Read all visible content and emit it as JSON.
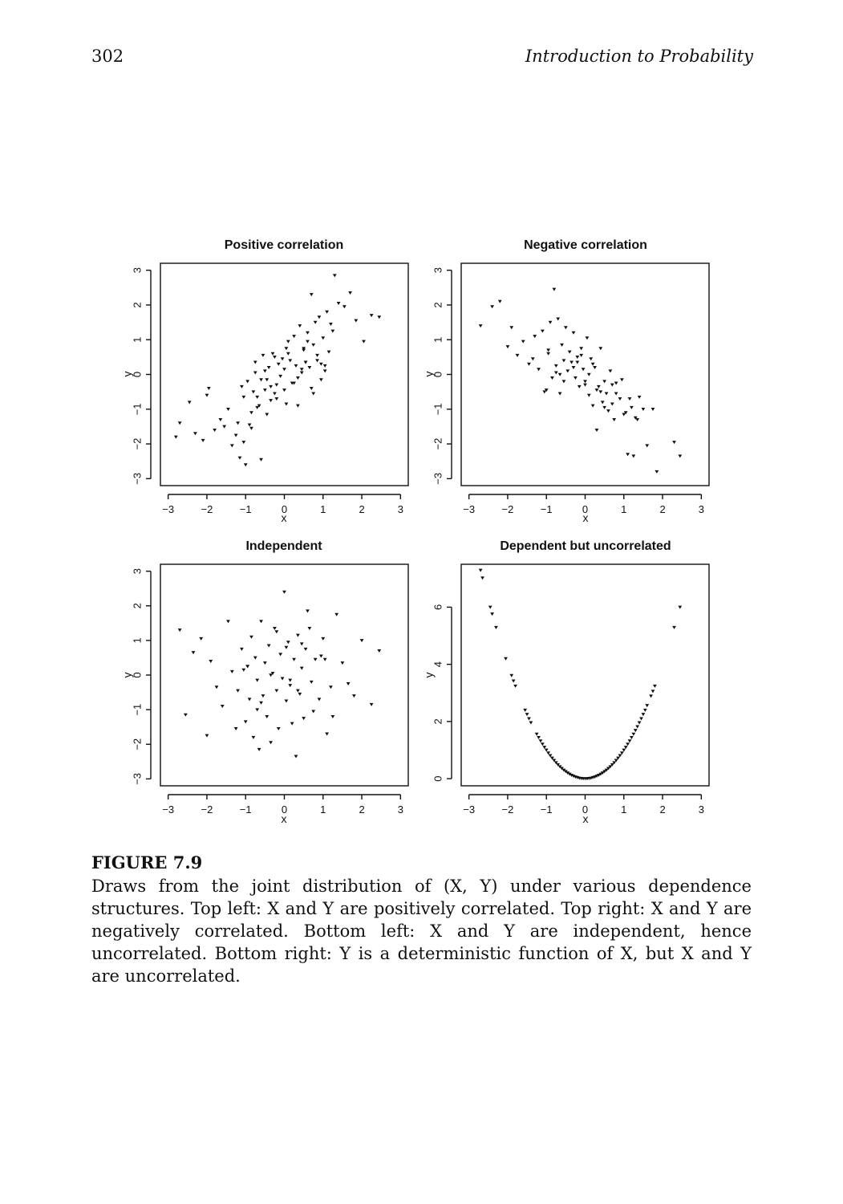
{
  "header": {
    "page_number": "302",
    "book_title": "Introduction to Probability"
  },
  "figure": {
    "label": "FIGURE 7.9",
    "caption": "Draws from the joint distribution of (X, Y) under various dependence structures. Top left: X and Y are positively correlated. Top right: X and Y are negatively correlated. Bottom left: X and Y are independent, hence uncorrelated. Bottom right: Y is a deterministic function of X, but X and Y are uncorrelated."
  },
  "chart_data": [
    {
      "type": "scatter",
      "title": "Positive correlation",
      "xlabel": "x",
      "ylabel": "y",
      "xlim": [
        -3.2,
        3.2
      ],
      "ylim": [
        -3.2,
        3.2
      ],
      "x_ticks": [
        -3,
        -2,
        -1,
        0,
        1,
        2,
        3
      ],
      "y_ticks": [
        -3,
        -2,
        -1,
        0,
        1,
        2,
        3
      ],
      "x_tick_labels": [
        "−3",
        "−2",
        "−1",
        "0",
        "1",
        "2",
        "3"
      ],
      "y_tick_labels": [
        "−3",
        "−2",
        "−1",
        "0",
        "1",
        "2",
        "3"
      ],
      "grid": false,
      "x": [
        -2.8,
        -2.7,
        -2.45,
        -2.3,
        -2.1,
        -2.0,
        -1.95,
        -1.8,
        -1.65,
        -1.55,
        -1.45,
        -1.35,
        -1.25,
        -1.2,
        -1.15,
        -1.1,
        -1.05,
        -1.0,
        -0.95,
        -0.9,
        -0.85,
        -0.8,
        -0.75,
        -0.7,
        -0.65,
        -0.6,
        -0.55,
        -0.5,
        -0.45,
        -0.4,
        -0.35,
        -0.3,
        -0.25,
        -0.2,
        -0.15,
        -0.1,
        -0.05,
        0.0,
        0.05,
        0.1,
        0.15,
        0.2,
        0.25,
        0.3,
        0.35,
        0.4,
        0.45,
        0.5,
        0.55,
        0.6,
        0.65,
        0.7,
        0.75,
        0.8,
        0.85,
        0.9,
        0.95,
        1.0,
        1.05,
        1.1,
        1.15,
        1.2,
        1.3,
        1.4,
        1.55,
        1.7,
        1.85,
        2.05,
        2.25,
        2.45,
        -1.05,
        -0.85,
        -0.7,
        -0.45,
        -0.2,
        0.0,
        0.1,
        0.25,
        0.45,
        0.55,
        0.6,
        0.75,
        0.85,
        1.05,
        -0.35,
        -0.6,
        -0.75,
        -0.5,
        -0.25,
        0.05,
        0.35,
        0.5,
        0.7,
        0.95,
        1.25
      ],
      "y": [
        -1.8,
        -1.4,
        -0.8,
        -1.7,
        -1.9,
        -0.6,
        -0.4,
        -1.6,
        -1.3,
        -1.5,
        -1.0,
        -2.05,
        -1.75,
        -1.4,
        -2.4,
        -0.35,
        -1.95,
        -2.6,
        -0.2,
        -1.45,
        -1.1,
        -0.5,
        0.05,
        -0.65,
        -0.9,
        -2.45,
        0.55,
        -0.45,
        -0.15,
        0.2,
        -0.75,
        0.6,
        -0.55,
        -0.3,
        0.3,
        -0.05,
        0.45,
        0.15,
        -0.85,
        0.95,
        0.4,
        -0.25,
        1.1,
        0.25,
        -0.1,
        1.4,
        0.05,
        0.75,
        0.35,
        1.2,
        0.2,
        2.3,
        0.85,
        1.5,
        0.4,
        1.65,
        -0.15,
        1.05,
        0.25,
        1.8,
        0.65,
        1.45,
        2.85,
        2.05,
        1.95,
        2.35,
        1.55,
        0.95,
        1.7,
        1.65,
        -0.65,
        -1.55,
        -0.95,
        -1.15,
        -0.7,
        -0.45,
        0.6,
        -0.25,
        0.15,
        0.35,
        0.95,
        -0.55,
        0.55,
        0.1,
        -0.35,
        -0.15,
        0.35,
        0.1,
        0.5,
        0.75,
        -0.9,
        0.7,
        -0.4,
        0.3,
        1.25
      ],
      "marker": "small filled triangle"
    },
    {
      "type": "scatter",
      "title": "Negative correlation",
      "xlabel": "x",
      "ylabel": "y",
      "xlim": [
        -3.2,
        3.2
      ],
      "ylim": [
        -3.2,
        3.2
      ],
      "x_ticks": [
        -3,
        -2,
        -1,
        0,
        1,
        2,
        3
      ],
      "y_ticks": [
        -3,
        -2,
        -1,
        0,
        1,
        2,
        3
      ],
      "x_tick_labels": [
        "−3",
        "−2",
        "−1",
        "0",
        "1",
        "2",
        "3"
      ],
      "y_tick_labels": [
        "−3",
        "−2",
        "−1",
        "0",
        "1",
        "2",
        "3"
      ],
      "grid": false,
      "x": [
        -2.7,
        -2.4,
        -2.2,
        -2.0,
        -1.9,
        -1.75,
        -1.6,
        -1.45,
        -1.3,
        -1.2,
        -1.1,
        -1.0,
        -0.95,
        -0.9,
        -0.85,
        -0.8,
        -0.75,
        -0.7,
        -0.65,
        -0.6,
        -0.55,
        -0.5,
        -0.45,
        -0.4,
        -0.35,
        -0.3,
        -0.25,
        -0.2,
        -0.15,
        -0.1,
        -0.05,
        0.0,
        0.05,
        0.1,
        0.15,
        0.2,
        0.25,
        0.3,
        0.35,
        0.4,
        0.45,
        0.5,
        0.55,
        0.6,
        0.65,
        0.7,
        0.75,
        0.8,
        0.9,
        1.0,
        1.1,
        1.2,
        1.3,
        1.4,
        1.5,
        1.6,
        1.75,
        1.85,
        2.3,
        2.45,
        -1.05,
        -0.75,
        -0.55,
        -0.3,
        -0.1,
        0.1,
        0.3,
        0.5,
        0.7,
        0.95,
        1.15,
        1.35,
        -1.35,
        -0.95,
        -0.65,
        -0.2,
        0.0,
        0.2,
        0.4,
        0.8,
        1.05,
        1.25
      ],
      "y": [
        1.4,
        1.95,
        2.1,
        0.8,
        1.35,
        0.55,
        0.95,
        0.3,
        1.1,
        0.15,
        1.25,
        -0.45,
        0.6,
        1.5,
        -0.1,
        2.45,
        0.25,
        1.6,
        -0.55,
        0.85,
        -0.2,
        1.35,
        0.1,
        0.65,
        0.35,
        1.2,
        -0.1,
        0.5,
        -0.35,
        0.75,
        0.15,
        -0.2,
        1.05,
        -0.6,
        0.45,
        -0.9,
        0.2,
        -1.6,
        -0.35,
        0.75,
        -0.8,
        -0.2,
        -0.55,
        -1.05,
        0.1,
        -0.85,
        -1.3,
        -0.55,
        -0.7,
        -1.15,
        -2.3,
        -0.95,
        -1.25,
        -0.65,
        -1.0,
        -2.05,
        -1.0,
        -2.8,
        -1.95,
        -2.35,
        -0.5,
        0.05,
        0.4,
        0.2,
        0.55,
        0.0,
        -0.45,
        -0.95,
        -0.3,
        -0.15,
        -0.7,
        -1.3,
        0.45,
        0.7,
        0.0,
        0.35,
        -0.3,
        0.3,
        -0.5,
        -0.25,
        -1.1,
        -2.35
      ],
      "marker": "small filled triangle"
    },
    {
      "type": "scatter",
      "title": "Independent",
      "xlabel": "x",
      "ylabel": "y",
      "xlim": [
        -3.2,
        3.2
      ],
      "ylim": [
        -3.2,
        3.2
      ],
      "x_ticks": [
        -3,
        -2,
        -1,
        0,
        1,
        2,
        3
      ],
      "y_ticks": [
        -3,
        -2,
        -1,
        0,
        1,
        2,
        3
      ],
      "x_tick_labels": [
        "−3",
        "−2",
        "−1",
        "0",
        "1",
        "2",
        "3"
      ],
      "y_tick_labels": [
        "−3",
        "−2",
        "−1",
        "0",
        "1",
        "2",
        "3"
      ],
      "grid": false,
      "x": [
        -2.7,
        -2.55,
        -2.35,
        -2.15,
        -2.0,
        -1.9,
        -1.75,
        -1.6,
        -1.45,
        -1.35,
        -1.2,
        -1.1,
        -1.0,
        -0.95,
        -0.9,
        -0.85,
        -0.8,
        -0.75,
        -0.7,
        -0.65,
        -0.6,
        -0.55,
        -0.5,
        -0.45,
        -0.4,
        -0.35,
        -0.3,
        -0.25,
        -0.2,
        -0.15,
        -0.1,
        -0.05,
        0.0,
        0.05,
        0.1,
        0.15,
        0.2,
        0.25,
        0.3,
        0.35,
        0.4,
        0.45,
        0.5,
        0.55,
        0.6,
        0.7,
        0.8,
        0.9,
        1.0,
        1.1,
        1.2,
        1.35,
        1.5,
        1.65,
        1.8,
        2.0,
        2.25,
        2.45,
        -1.25,
        -0.95,
        -0.6,
        -0.2,
        0.15,
        0.45,
        0.75,
        1.05,
        -1.05,
        -0.7,
        -0.35,
        0.05,
        0.35,
        0.65,
        0.95,
        1.25
      ],
      "y": [
        1.3,
        -1.15,
        0.65,
        1.05,
        -1.75,
        0.4,
        -0.35,
        -0.9,
        1.55,
        0.1,
        -0.45,
        0.75,
        -1.35,
        0.25,
        -0.7,
        1.1,
        -1.8,
        0.5,
        -0.15,
        -2.15,
        1.55,
        -0.6,
        0.35,
        -1.2,
        0.85,
        -1.95,
        0.05,
        1.35,
        -0.45,
        -1.55,
        0.6,
        -0.1,
        2.4,
        -0.75,
        0.95,
        -0.3,
        -1.4,
        0.45,
        -2.35,
        1.15,
        -0.55,
        0.2,
        -1.25,
        0.75,
        1.85,
        -0.2,
        0.45,
        -0.7,
        1.05,
        -1.7,
        -0.35,
        1.75,
        0.35,
        -0.25,
        -0.6,
        1.0,
        -0.85,
        0.7,
        -1.55,
        0.25,
        -0.8,
        1.25,
        -0.15,
        0.9,
        -1.05,
        0.45,
        0.15,
        -1.0,
        0.0,
        0.8,
        -0.45,
        1.35,
        0.55,
        -1.2
      ],
      "marker": "small filled triangle"
    },
    {
      "type": "scatter",
      "title": "Dependent but uncorrelated",
      "xlabel": "x",
      "ylabel": "y",
      "xlim": [
        -3.2,
        3.2
      ],
      "ylim": [
        -0.25,
        7.5
      ],
      "x_ticks": [
        -3,
        -2,
        -1,
        0,
        1,
        2,
        3
      ],
      "y_ticks": [
        0,
        2,
        4,
        6
      ],
      "x_tick_labels": [
        "−3",
        "−2",
        "−1",
        "0",
        "1",
        "2",
        "3"
      ],
      "y_tick_labels": [
        "0",
        "2",
        "4",
        "6"
      ],
      "grid": false,
      "x": [
        -2.7,
        -2.65,
        -2.45,
        -2.4,
        -2.3,
        -2.05,
        -1.9,
        -1.85,
        -1.8,
        -1.55,
        -1.5,
        -1.45,
        -1.4,
        -1.25,
        -1.2,
        -1.15,
        -1.1,
        -1.05,
        -1.0,
        -0.95,
        -0.9,
        -0.85,
        -0.8,
        -0.75,
        -0.7,
        -0.65,
        -0.6,
        -0.55,
        -0.5,
        -0.45,
        -0.4,
        -0.35,
        -0.3,
        -0.25,
        -0.2,
        -0.15,
        -0.1,
        -0.05,
        0.0,
        0.05,
        0.1,
        0.15,
        0.2,
        0.25,
        0.3,
        0.35,
        0.4,
        0.45,
        0.5,
        0.55,
        0.6,
        0.65,
        0.7,
        0.75,
        0.8,
        0.85,
        0.9,
        0.95,
        1.0,
        1.05,
        1.1,
        1.15,
        1.2,
        1.25,
        1.3,
        1.35,
        1.4,
        1.45,
        1.5,
        1.55,
        1.6,
        1.7,
        1.75,
        1.8,
        2.3,
        2.45
      ],
      "y": [
        7.29,
        7.02,
        6.0,
        5.76,
        5.29,
        4.2,
        3.61,
        3.42,
        3.24,
        2.4,
        2.25,
        2.1,
        1.96,
        1.56,
        1.44,
        1.32,
        1.21,
        1.1,
        1.0,
        0.9,
        0.81,
        0.72,
        0.64,
        0.56,
        0.49,
        0.42,
        0.36,
        0.3,
        0.25,
        0.2,
        0.16,
        0.12,
        0.09,
        0.06,
        0.04,
        0.02,
        0.01,
        0.0,
        0.0,
        0.0,
        0.01,
        0.02,
        0.04,
        0.06,
        0.09,
        0.12,
        0.16,
        0.2,
        0.25,
        0.3,
        0.36,
        0.42,
        0.49,
        0.56,
        0.64,
        0.72,
        0.81,
        0.9,
        1.0,
        1.1,
        1.21,
        1.32,
        1.44,
        1.56,
        1.69,
        1.82,
        1.96,
        2.1,
        2.25,
        2.4,
        2.56,
        2.89,
        3.06,
        3.24,
        5.29,
        6.0
      ],
      "marker": "small filled triangle"
    }
  ]
}
